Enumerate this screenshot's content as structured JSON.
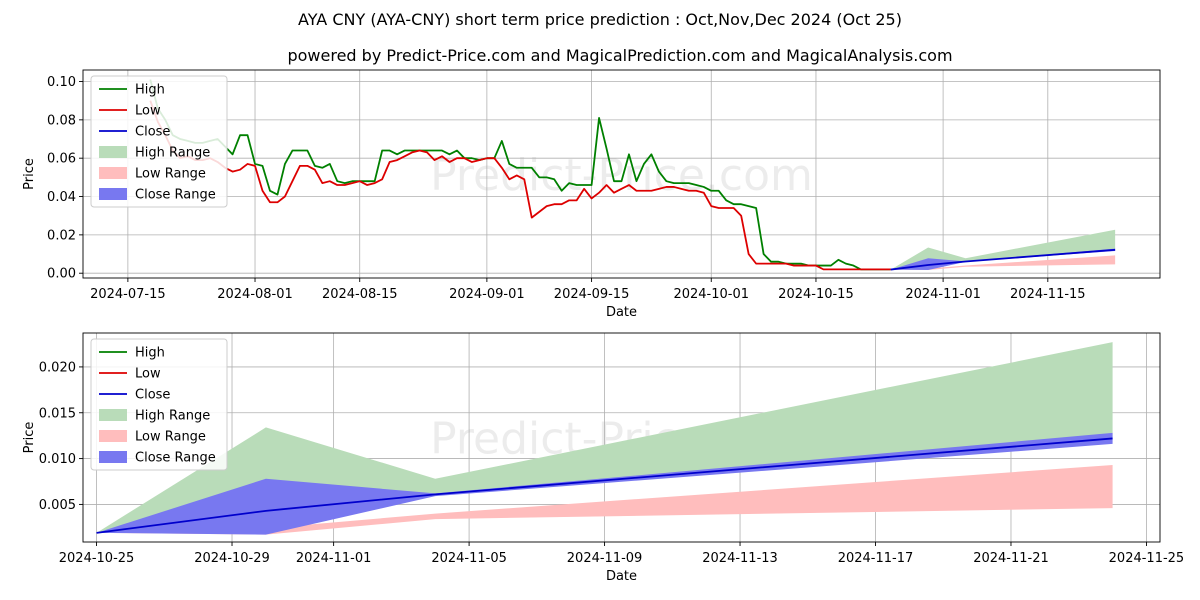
{
  "page_title": "AYA CNY (AYA-CNY) short term price prediction : Oct,Nov,Dec 2024 (Oct 25)",
  "subtitle": "powered by Predict-Price.com and MagicalPrediction.com and MagicalAnalysis.com",
  "watermark": "Predict-Price.com",
  "colors": {
    "high": "#008000",
    "low": "#dd0000",
    "close": "#0000cc",
    "high_range": "#b9dcb9",
    "low_range": "#ffbdbd",
    "close_range": "#7878f0",
    "grid": "#b0b0b0"
  },
  "chart_data": [
    {
      "type": "line",
      "title": "",
      "xlabel": "Date",
      "ylabel": "Price",
      "xlim": [
        "2024-07-09",
        "2024-11-30"
      ],
      "ylim": [
        -0.0025,
        0.106
      ],
      "x_ticks": [
        "2024-07-15",
        "2024-08-01",
        "2024-08-15",
        "2024-09-01",
        "2024-09-15",
        "2024-10-01",
        "2024-10-15",
        "2024-11-01",
        "2024-11-15"
      ],
      "y_ticks": [
        0.0,
        0.02,
        0.04,
        0.06,
        0.08,
        0.1
      ],
      "y_tick_labels": [
        "0.00",
        "0.02",
        "0.04",
        "0.06",
        "0.08",
        "0.10"
      ],
      "grid": true,
      "legend": [
        "High",
        "Low",
        "Close",
        "High Range",
        "Low Range",
        "Close Range"
      ],
      "legend_position": "top-left",
      "history_dates": [
        "2024-07-18",
        "2024-07-19",
        "2024-07-20",
        "2024-07-21",
        "2024-07-22",
        "2024-07-23",
        "2024-07-24",
        "2024-07-25",
        "2024-07-26",
        "2024-07-27",
        "2024-07-28",
        "2024-07-29",
        "2024-07-30",
        "2024-07-31",
        "2024-08-01",
        "2024-08-02",
        "2024-08-03",
        "2024-08-04",
        "2024-08-05",
        "2024-08-06",
        "2024-08-07",
        "2024-08-08",
        "2024-08-09",
        "2024-08-10",
        "2024-08-11",
        "2024-08-12",
        "2024-08-13",
        "2024-08-14",
        "2024-08-15",
        "2024-08-16",
        "2024-08-17",
        "2024-08-18",
        "2024-08-19",
        "2024-08-20",
        "2024-08-21",
        "2024-08-22",
        "2024-08-23",
        "2024-08-24",
        "2024-08-25",
        "2024-08-26",
        "2024-08-27",
        "2024-08-28",
        "2024-08-29",
        "2024-08-30",
        "2024-08-31",
        "2024-09-01",
        "2024-09-02",
        "2024-09-03",
        "2024-09-04",
        "2024-09-05",
        "2024-09-06",
        "2024-09-07",
        "2024-09-08",
        "2024-09-09",
        "2024-09-10",
        "2024-09-11",
        "2024-09-12",
        "2024-09-13",
        "2024-09-14",
        "2024-09-15",
        "2024-09-16",
        "2024-09-17",
        "2024-09-18",
        "2024-09-19",
        "2024-09-20",
        "2024-09-21",
        "2024-09-22",
        "2024-09-23",
        "2024-09-24",
        "2024-09-25",
        "2024-09-26",
        "2024-09-27",
        "2024-09-28",
        "2024-09-29",
        "2024-09-30",
        "2024-10-01",
        "2024-10-02",
        "2024-10-03",
        "2024-10-04",
        "2024-10-05",
        "2024-10-06",
        "2024-10-07",
        "2024-10-08",
        "2024-10-09",
        "2024-10-10",
        "2024-10-11",
        "2024-10-12",
        "2024-10-13",
        "2024-10-14",
        "2024-10-15",
        "2024-10-16",
        "2024-10-17",
        "2024-10-18",
        "2024-10-19",
        "2024-10-20",
        "2024-10-21",
        "2024-10-22",
        "2024-10-23",
        "2024-10-24",
        "2024-10-25"
      ],
      "series": [
        {
          "name": "High",
          "values": [
            0.101,
            0.086,
            0.08,
            0.072,
            0.07,
            0.069,
            0.068,
            0.068,
            0.069,
            0.07,
            0.066,
            0.062,
            0.072,
            0.072,
            0.057,
            0.056,
            0.043,
            0.041,
            0.057,
            0.064,
            0.064,
            0.064,
            0.056,
            0.055,
            0.057,
            0.048,
            0.047,
            0.048,
            0.048,
            0.048,
            0.048,
            0.064,
            0.064,
            0.062,
            0.064,
            0.064,
            0.064,
            0.064,
            0.064,
            0.064,
            0.062,
            0.064,
            0.06,
            0.06,
            0.059,
            0.06,
            0.06,
            0.069,
            0.057,
            0.055,
            0.055,
            0.055,
            0.05,
            0.05,
            0.049,
            0.043,
            0.047,
            0.046,
            0.046,
            0.046,
            0.081,
            0.065,
            0.048,
            0.048,
            0.062,
            0.048,
            0.057,
            0.062,
            0.053,
            0.048,
            0.047,
            0.047,
            0.047,
            0.046,
            0.045,
            0.043,
            0.043,
            0.038,
            0.036,
            0.036,
            0.035,
            0.034,
            0.01,
            0.006,
            0.006,
            0.005,
            0.005,
            0.005,
            0.004,
            0.004,
            0.004,
            0.004,
            0.007,
            0.005,
            0.004,
            0.002,
            0.002,
            0.002,
            0.002,
            0.002
          ]
        },
        {
          "name": "Low",
          "values": [
            0.09,
            0.079,
            0.072,
            0.064,
            0.06,
            0.061,
            0.059,
            0.059,
            0.06,
            0.058,
            0.055,
            0.053,
            0.054,
            0.057,
            0.056,
            0.043,
            0.037,
            0.037,
            0.04,
            0.048,
            0.056,
            0.056,
            0.054,
            0.047,
            0.048,
            0.046,
            0.046,
            0.047,
            0.048,
            0.046,
            0.047,
            0.049,
            0.058,
            0.059,
            0.061,
            0.063,
            0.064,
            0.063,
            0.059,
            0.061,
            0.058,
            0.06,
            0.06,
            0.058,
            0.059,
            0.06,
            0.06,
            0.055,
            0.049,
            0.051,
            0.049,
            0.029,
            0.032,
            0.035,
            0.036,
            0.036,
            0.038,
            0.038,
            0.044,
            0.039,
            0.042,
            0.046,
            0.042,
            0.044,
            0.046,
            0.043,
            0.043,
            0.043,
            0.044,
            0.045,
            0.045,
            0.044,
            0.043,
            0.043,
            0.042,
            0.035,
            0.034,
            0.034,
            0.034,
            0.03,
            0.01,
            0.005,
            0.005,
            0.005,
            0.005,
            0.005,
            0.004,
            0.004,
            0.004,
            0.004,
            0.002,
            0.002,
            0.002,
            0.002,
            0.002,
            0.002,
            0.002,
            0.002,
            0.002,
            0.002
          ]
        }
      ],
      "forecast": {
        "dates": [
          "2024-10-25",
          "2024-10-30",
          "2024-11-04",
          "2024-11-24"
        ],
        "close": [
          0.0019,
          0.0043,
          0.0061,
          0.0122
        ],
        "close_range": {
          "upper": [
            0.0019,
            0.0078,
            0.0062,
            0.0128
          ],
          "lower": [
            0.0019,
            0.0017,
            0.0059,
            0.0116
          ]
        },
        "high_range": {
          "upper": [
            0.0019,
            0.0134,
            0.0078,
            0.0227
          ],
          "lower": [
            0.0019,
            0.0043,
            0.0061,
            0.0122
          ]
        },
        "low_range": {
          "upper": [
            0.0019,
            0.0024,
            0.004,
            0.0093
          ],
          "lower": [
            0.0019,
            0.0017,
            0.0034,
            0.0046
          ]
        }
      }
    },
    {
      "type": "line",
      "title": "",
      "xlabel": "Date",
      "ylabel": "Price",
      "xlim": [
        "2024-10-24.6",
        "2024-11-25.4"
      ],
      "ylim": [
        0.0009,
        0.0237
      ],
      "x_ticks": [
        "2024-10-25",
        "2024-10-29",
        "2024-11-01",
        "2024-11-05",
        "2024-11-09",
        "2024-11-13",
        "2024-11-17",
        "2024-11-21",
        "2024-11-25"
      ],
      "y_ticks": [
        0.005,
        0.01,
        0.015,
        0.02
      ],
      "y_tick_labels": [
        "0.005",
        "0.010",
        "0.015",
        "0.020"
      ],
      "grid": true,
      "legend": [
        "High",
        "Low",
        "Close",
        "High Range",
        "Low Range",
        "Close Range"
      ],
      "legend_position": "top-left"
    }
  ]
}
